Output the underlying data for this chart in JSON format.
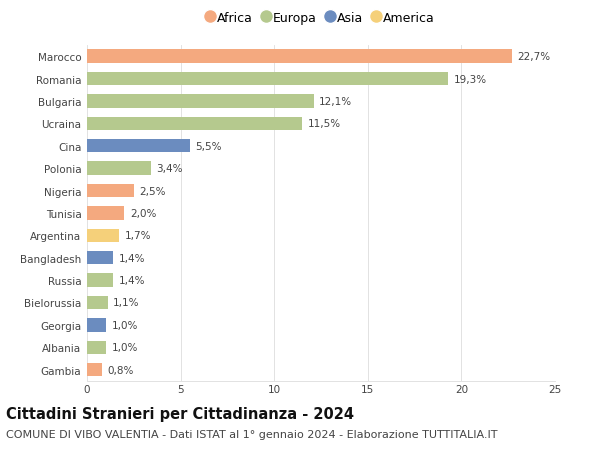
{
  "countries": [
    "Marocco",
    "Romania",
    "Bulgaria",
    "Ucraina",
    "Cina",
    "Polonia",
    "Nigeria",
    "Tunisia",
    "Argentina",
    "Bangladesh",
    "Russia",
    "Bielorussia",
    "Georgia",
    "Albania",
    "Gambia"
  ],
  "values": [
    22.7,
    19.3,
    12.1,
    11.5,
    5.5,
    3.4,
    2.5,
    2.0,
    1.7,
    1.4,
    1.4,
    1.1,
    1.0,
    1.0,
    0.8
  ],
  "labels": [
    "22,7%",
    "19,3%",
    "12,1%",
    "11,5%",
    "5,5%",
    "3,4%",
    "2,5%",
    "2,0%",
    "1,7%",
    "1,4%",
    "1,4%",
    "1,1%",
    "1,0%",
    "1,0%",
    "0,8%"
  ],
  "continents": [
    "Africa",
    "Europa",
    "Europa",
    "Europa",
    "Asia",
    "Europa",
    "Africa",
    "Africa",
    "America",
    "Asia",
    "Europa",
    "Europa",
    "Asia",
    "Europa",
    "Africa"
  ],
  "colors": {
    "Africa": "#F4A97F",
    "Europa": "#B5C98E",
    "Asia": "#6B8CBF",
    "America": "#F5D07A"
  },
  "legend_order": [
    "Africa",
    "Europa",
    "Asia",
    "America"
  ],
  "title": "Cittadini Stranieri per Cittadinanza - 2024",
  "subtitle": "COMUNE DI VIBO VALENTIA - Dati ISTAT al 1° gennaio 2024 - Elaborazione TUTTITALIA.IT",
  "xlim": [
    0,
    25
  ],
  "xticks": [
    0,
    5,
    10,
    15,
    20,
    25
  ],
  "background_color": "#ffffff",
  "bar_height": 0.6,
  "title_fontsize": 10.5,
  "subtitle_fontsize": 8,
  "label_fontsize": 7.5,
  "tick_fontsize": 7.5,
  "legend_fontsize": 9
}
